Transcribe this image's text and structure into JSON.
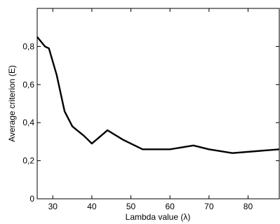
{
  "chart_data": {
    "type": "line",
    "title": "",
    "xlabel": "Lambda value (λ)",
    "ylabel": "Average criterion (E)",
    "xlim": [
      26,
      88
    ],
    "ylim": [
      0,
      1.0
    ],
    "x_ticks": [
      30,
      40,
      50,
      60,
      70,
      80
    ],
    "x_tick_labels": [
      "30",
      "40",
      "50",
      "60",
      "70",
      "80"
    ],
    "y_ticks": [
      0,
      0.2,
      0.4,
      0.6,
      0.8
    ],
    "y_tick_labels": [
      "0",
      "0,2",
      "0,4",
      "0,6",
      "0,8"
    ],
    "grid": false,
    "line_color": "#000000",
    "series": [
      {
        "x": [
          26,
          28,
          29,
          31,
          33,
          35,
          38,
          40,
          44,
          48,
          53,
          60,
          66,
          70,
          76,
          82,
          88
        ],
        "values": [
          0.85,
          0.8,
          0.79,
          0.65,
          0.46,
          0.38,
          0.33,
          0.29,
          0.36,
          0.31,
          0.26,
          0.26,
          0.28,
          0.26,
          0.24,
          0.25,
          0.26
        ]
      }
    ]
  }
}
